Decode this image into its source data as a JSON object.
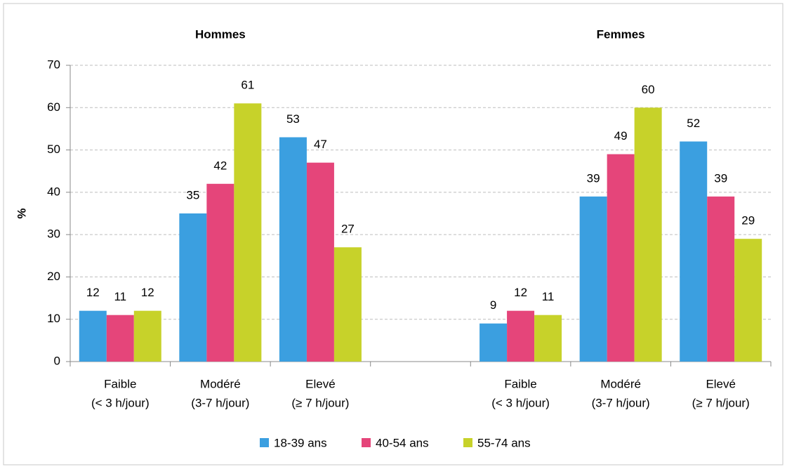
{
  "chart_data": {
    "type": "bar",
    "group_titles": [
      "Hommes",
      "Femmes"
    ],
    "ylabel": "%",
    "categories": [
      [
        "Faible",
        "(< 3 h/jour)"
      ],
      [
        "Modéré",
        "(3-7 h/jour)"
      ],
      [
        "Elevé",
        "(≥ 7 h/jour)"
      ],
      null,
      [
        "Faible",
        "(< 3 h/jour)"
      ],
      [
        "Modéré",
        "(3-7 h/jour)"
      ],
      [
        "Elevé",
        "(≥ 7 h/jour)"
      ]
    ],
    "series": [
      {
        "name": "18-39 ans",
        "color": "#3b9fe0",
        "values": [
          12,
          35,
          53,
          null,
          9,
          39,
          52
        ]
      },
      {
        "name": "40-54 ans",
        "color": "#e5457a",
        "values": [
          11,
          42,
          47,
          null,
          12,
          49,
          39
        ]
      },
      {
        "name": "55-74 ans",
        "color": "#c7d22a",
        "values": [
          12,
          61,
          27,
          null,
          11,
          60,
          29
        ]
      }
    ],
    "ylim": [
      0,
      70
    ],
    "yticks": [
      0,
      10,
      20,
      30,
      40,
      50,
      60,
      70
    ],
    "grid": true,
    "legend": "bottom"
  }
}
